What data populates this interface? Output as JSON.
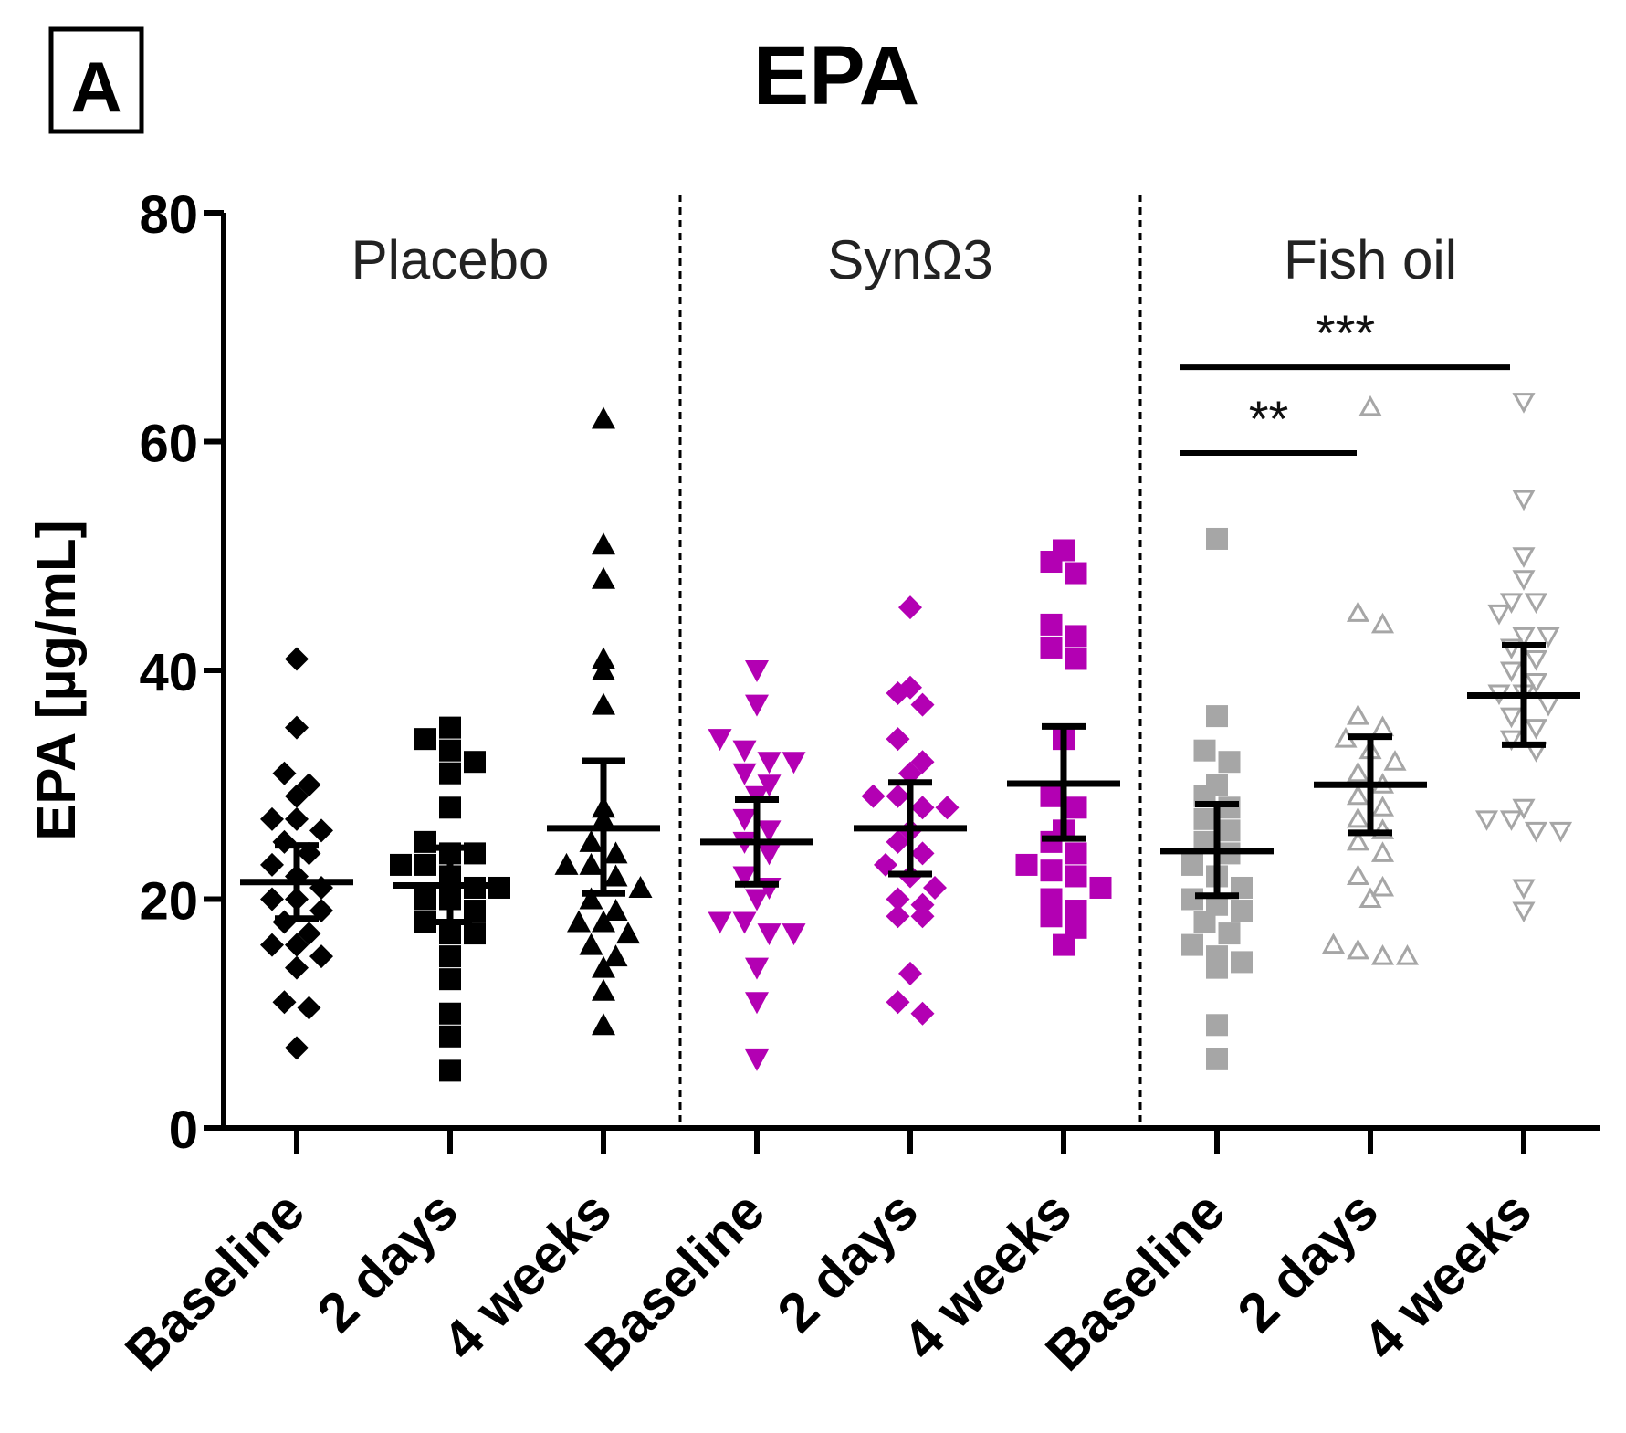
{
  "chart_data": {
    "type": "scatter",
    "panel_label": "A",
    "title": "EPA",
    "ylabel": "EPA [µg/mL]",
    "xlabel": "",
    "ylim": [
      0,
      80
    ],
    "yticks": [
      0,
      20,
      40,
      60,
      80
    ],
    "categories": [
      "Baseline",
      "2 days",
      "4 weeks",
      "Baseline",
      "2 days",
      "4 weeks",
      "Baseline",
      "2 days",
      "4 weeks"
    ],
    "groups": [
      {
        "name": "Placebo",
        "color": "#000000",
        "categories": [
          0,
          1,
          2
        ]
      },
      {
        "name": "SynΩ3",
        "color": "#b300b3",
        "categories": [
          3,
          4,
          5
        ]
      },
      {
        "name": "Fish oil",
        "color": "#a6a6a6",
        "categories": [
          6,
          7,
          8
        ]
      }
    ],
    "series": [
      {
        "name": "Placebo Baseline",
        "marker": "diamond",
        "color": "#000000",
        "mean": 21.5,
        "sem_low": 18.3,
        "sem_high": 24.7,
        "values": [
          41,
          35,
          31,
          30,
          29,
          27,
          27,
          26,
          25,
          24,
          23,
          22,
          21,
          20,
          20,
          19,
          18,
          17,
          16,
          16,
          15,
          14,
          11,
          10.5,
          7
        ]
      },
      {
        "name": "Placebo 2 days",
        "marker": "square",
        "color": "#000000",
        "mean": 21.2,
        "sem_low": 18,
        "sem_high": 24.5,
        "values": [
          35,
          34,
          33,
          32,
          31,
          28,
          25,
          24,
          24,
          23,
          23,
          22,
          21,
          21,
          20,
          20,
          19,
          18,
          17,
          17,
          15,
          13,
          10,
          8,
          5
        ]
      },
      {
        "name": "Placebo 4 weeks",
        "marker": "triangle-up",
        "color": "#000000",
        "mean": 26.2,
        "sem_low": 20.5,
        "sem_high": 32.1,
        "values": [
          62,
          51,
          48,
          41,
          40,
          37,
          28,
          27,
          25,
          24,
          23,
          23,
          22,
          21,
          20,
          19,
          18,
          18,
          17,
          16,
          15,
          14,
          12,
          9
        ]
      },
      {
        "name": "SynΩ3 Baseline",
        "marker": "triangle-down",
        "color": "#b300b3",
        "mean": 25,
        "sem_low": 21.3,
        "sem_high": 28.7,
        "values": [
          40,
          37,
          34,
          33,
          32,
          32,
          31,
          30,
          29,
          27,
          26,
          25,
          24,
          22,
          21,
          20,
          18,
          18,
          17,
          17,
          14,
          11,
          6
        ]
      },
      {
        "name": "SynΩ3 2 days",
        "marker": "diamond",
        "color": "#b300b3",
        "mean": 26.2,
        "sem_low": 22.2,
        "sem_high": 30.2,
        "values": [
          45.5,
          38.5,
          38,
          37,
          34,
          32,
          31,
          29,
          29,
          28,
          28,
          26,
          25,
          24,
          23,
          22,
          21,
          20,
          19.5,
          18.5,
          18.5,
          13.5,
          11,
          10
        ]
      },
      {
        "name": "SynΩ3 4 weeks",
        "marker": "square",
        "color": "#b300b3",
        "mean": 30.1,
        "sem_low": 25.3,
        "sem_high": 35.1,
        "values": [
          50.5,
          49.5,
          48.5,
          44,
          43,
          42,
          41,
          34,
          29,
          28,
          26,
          25,
          24,
          23,
          22.5,
          22,
          21,
          20,
          19,
          18.5,
          17.5,
          16
        ]
      },
      {
        "name": "Fish oil Baseline",
        "marker": "square",
        "color": "#a6a6a6",
        "mean": 24.2,
        "sem_low": 20.3,
        "sem_high": 28.3,
        "values": [
          51.5,
          36,
          33,
          32,
          30,
          29,
          28,
          27,
          26,
          25,
          24,
          23,
          22,
          21,
          20,
          19.5,
          19,
          18,
          17,
          16,
          15,
          14.5,
          14,
          9,
          6
        ]
      },
      {
        "name": "Fish oil 2 days",
        "marker": "triangle-up-open",
        "color": "#a6a6a6",
        "mean": 30,
        "sem_low": 25.8,
        "sem_high": 34.2,
        "values": [
          63,
          45,
          44,
          36,
          35,
          34,
          33,
          32,
          31,
          30,
          29,
          28,
          27,
          26,
          25,
          24,
          22,
          21,
          20,
          16,
          15.5,
          15,
          15
        ]
      },
      {
        "name": "Fish oil 4 weeks",
        "marker": "triangle-down-open",
        "color": "#a6a6a6",
        "mean": 37.8,
        "sem_low": 33.5,
        "sem_high": 42.2,
        "values": [
          63.5,
          55,
          50,
          48,
          46,
          46,
          45,
          43,
          43,
          42,
          41,
          40,
          39,
          38,
          38,
          37,
          36,
          35,
          34,
          33,
          28,
          27,
          27,
          26,
          26,
          21,
          19
        ]
      }
    ],
    "significance": [
      {
        "label": "**",
        "from": 6,
        "to": 7,
        "y": 59
      },
      {
        "label": "***",
        "from": 6,
        "to": 8,
        "y": 66.5
      }
    ],
    "grid": false,
    "legend": "none"
  }
}
